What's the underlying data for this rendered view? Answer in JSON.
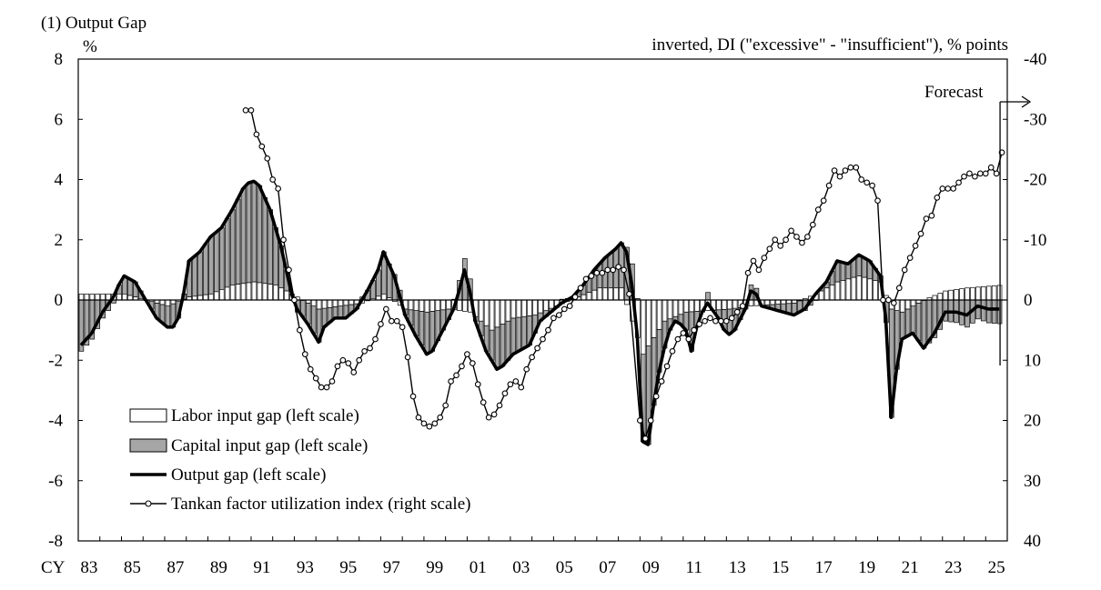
{
  "chart_data": {
    "type": "bar",
    "panel_title": "(1) Output Gap",
    "left_unit": "%",
    "right_unit": "inverted, DI (\"excessive\" - \"insufficient\"), % points",
    "forecast_label": "Forecast",
    "x_prefix": "CY",
    "x_ticks": [
      "83",
      "85",
      "87",
      "89",
      "91",
      "93",
      "95",
      "97",
      "99",
      "01",
      "03",
      "05",
      "07",
      "09",
      "11",
      "13",
      "15",
      "17",
      "19",
      "21",
      "23",
      "25"
    ],
    "x_range": [
      1983,
      2026
    ],
    "left_axis": {
      "range": [
        -8,
        8
      ],
      "ticks": [
        "8",
        "6",
        "4",
        "2",
        "0",
        "-2",
        "-4",
        "-6",
        "-8"
      ]
    },
    "right_axis": {
      "range": [
        40,
        -40
      ],
      "ticks": [
        "-40",
        "-30",
        "-20",
        "-10",
        "0",
        "10",
        "20",
        "30",
        "40"
      ]
    },
    "forecast_start": 2025.75,
    "legend": [
      {
        "key": "labor",
        "label": "Labor input gap (left scale)"
      },
      {
        "key": "capital",
        "label": "Capital input gap (left scale)"
      },
      {
        "key": "output",
        "label": "Output gap (left scale)"
      },
      {
        "key": "tankan",
        "label": "Tankan factor utilization index (right scale)"
      }
    ],
    "output_gap_anchors": [
      [
        1983.0,
        -1.5
      ],
      [
        1983.5,
        -1.1
      ],
      [
        1984.0,
        -0.4
      ],
      [
        1984.5,
        0.1
      ],
      [
        1984.75,
        0.5
      ],
      [
        1985.0,
        0.8
      ],
      [
        1985.5,
        0.6
      ],
      [
        1986.0,
        0.0
      ],
      [
        1986.5,
        -0.6
      ],
      [
        1987.0,
        -0.9
      ],
      [
        1987.25,
        -0.9
      ],
      [
        1987.5,
        -0.6
      ],
      [
        1987.75,
        0.2
      ],
      [
        1988.0,
        1.3
      ],
      [
        1988.5,
        1.6
      ],
      [
        1989.0,
        2.1
      ],
      [
        1989.5,
        2.4
      ],
      [
        1990.0,
        3.0
      ],
      [
        1990.5,
        3.7
      ],
      [
        1990.9,
        4.0
      ],
      [
        1991.25,
        3.8
      ],
      [
        1991.75,
        3.0
      ],
      [
        1992.25,
        1.8
      ],
      [
        1992.75,
        0.2
      ],
      [
        1993.0,
        -0.3
      ],
      [
        1993.5,
        -0.8
      ],
      [
        1994.0,
        -1.4
      ],
      [
        1994.25,
        -0.9
      ],
      [
        1994.75,
        -0.6
      ],
      [
        1995.25,
        -0.6
      ],
      [
        1995.75,
        -0.3
      ],
      [
        1996.25,
        0.3
      ],
      [
        1996.75,
        1.0
      ],
      [
        1997.0,
        1.6
      ],
      [
        1997.5,
        0.8
      ],
      [
        1998.0,
        -0.5
      ],
      [
        1998.5,
        -1.2
      ],
      [
        1999.0,
        -1.8
      ],
      [
        1999.25,
        -1.7
      ],
      [
        1999.75,
        -1.0
      ],
      [
        2000.25,
        -0.3
      ],
      [
        2000.5,
        0.3
      ],
      [
        2000.75,
        1.0
      ],
      [
        2001.0,
        0.3
      ],
      [
        2001.25,
        -0.7
      ],
      [
        2001.75,
        -1.7
      ],
      [
        2002.25,
        -2.3
      ],
      [
        2002.5,
        -2.2
      ],
      [
        2003.0,
        -1.8
      ],
      [
        2003.75,
        -1.5
      ],
      [
        2004.25,
        -0.7
      ],
      [
        2004.75,
        -0.4
      ],
      [
        2005.25,
        -0.1
      ],
      [
        2005.75,
        0.1
      ],
      [
        2006.25,
        0.5
      ],
      [
        2006.75,
        1.0
      ],
      [
        2007.25,
        1.4
      ],
      [
        2007.75,
        1.7
      ],
      [
        2008.0,
        1.9
      ],
      [
        2008.25,
        1.6
      ],
      [
        2008.5,
        0.5
      ],
      [
        2008.75,
        -1.2
      ],
      [
        2009.0,
        -4.7
      ],
      [
        2009.25,
        -4.8
      ],
      [
        2009.5,
        -3.5
      ],
      [
        2009.75,
        -2.4
      ],
      [
        2010.0,
        -1.6
      ],
      [
        2010.25,
        -1.0
      ],
      [
        2010.5,
        -0.7
      ],
      [
        2010.75,
        -0.8
      ],
      [
        2011.0,
        -1.0
      ],
      [
        2011.25,
        -1.7
      ],
      [
        2011.5,
        -0.9
      ],
      [
        2011.75,
        -0.4
      ],
      [
        2012.0,
        -0.1
      ],
      [
        2012.5,
        -0.6
      ],
      [
        2012.9,
        -1.2
      ],
      [
        2013.25,
        -1.0
      ],
      [
        2013.75,
        -0.3
      ],
      [
        2014.0,
        0.3
      ],
      [
        2014.25,
        0.2
      ],
      [
        2014.5,
        -0.2
      ],
      [
        2015.0,
        -0.3
      ],
      [
        2015.5,
        -0.4
      ],
      [
        2016.0,
        -0.5
      ],
      [
        2016.5,
        -0.3
      ],
      [
        2017.0,
        0.2
      ],
      [
        2017.5,
        0.6
      ],
      [
        2018.0,
        1.3
      ],
      [
        2018.5,
        1.2
      ],
      [
        2019.0,
        1.5
      ],
      [
        2019.5,
        1.3
      ],
      [
        2020.0,
        0.8
      ],
      [
        2020.25,
        -0.6
      ],
      [
        2020.5,
        -3.9
      ],
      [
        2020.75,
        -2.3
      ],
      [
        2021.0,
        -1.3
      ],
      [
        2021.5,
        -1.1
      ],
      [
        2022.0,
        -1.6
      ],
      [
        2022.5,
        -1.1
      ],
      [
        2023.0,
        -0.4
      ],
      [
        2023.5,
        -0.4
      ],
      [
        2024.0,
        -0.5
      ],
      [
        2024.5,
        -0.2
      ],
      [
        2025.0,
        -0.3
      ],
      [
        2025.5,
        -0.3
      ]
    ],
    "labor_anchors": [
      [
        1983.0,
        0.2
      ],
      [
        1985.0,
        0.2
      ],
      [
        1986.0,
        0.0
      ],
      [
        1987.0,
        -0.2
      ],
      [
        1988.0,
        0.1
      ],
      [
        1989.0,
        0.2
      ],
      [
        1990.0,
        0.5
      ],
      [
        1991.0,
        0.6
      ],
      [
        1992.0,
        0.5
      ],
      [
        1993.0,
        0.1
      ],
      [
        1994.0,
        -0.3
      ],
      [
        1996.0,
        -0.1
      ],
      [
        1997.0,
        0.2
      ],
      [
        1998.0,
        -0.3
      ],
      [
        1999.0,
        -0.4
      ],
      [
        2000.0,
        -0.3
      ],
      [
        2001.0,
        -0.4
      ],
      [
        2002.0,
        -1.0
      ],
      [
        2003.0,
        -0.6
      ],
      [
        2004.0,
        -0.5
      ],
      [
        2006.0,
        0.1
      ],
      [
        2007.0,
        0.4
      ],
      [
        2008.0,
        0.4
      ],
      [
        2009.0,
        -1.8
      ],
      [
        2010.0,
        -0.7
      ],
      [
        2011.0,
        -0.4
      ],
      [
        2013.0,
        -0.3
      ],
      [
        2014.0,
        -0.2
      ],
      [
        2016.0,
        -0.1
      ],
      [
        2017.0,
        0.2
      ],
      [
        2018.0,
        0.6
      ],
      [
        2019.0,
        0.8
      ],
      [
        2020.0,
        0.6
      ],
      [
        2020.5,
        -0.3
      ],
      [
        2021.0,
        -0.4
      ],
      [
        2022.0,
        0.0
      ],
      [
        2023.0,
        0.3
      ],
      [
        2024.0,
        0.4
      ],
      [
        2025.75,
        0.5
      ]
    ],
    "tankan_anchors": [
      [
        1990.75,
        -31.5
      ],
      [
        1991.0,
        -31.5
      ],
      [
        1991.25,
        -27.5
      ],
      [
        1991.5,
        -25.5
      ],
      [
        1991.75,
        -23.5
      ],
      [
        1992.0,
        -20.0
      ],
      [
        1992.25,
        -18.5
      ],
      [
        1992.5,
        -10.0
      ],
      [
        1992.75,
        -5.0
      ],
      [
        1993.0,
        0.0
      ],
      [
        1993.25,
        5.0
      ],
      [
        1993.5,
        9.0
      ],
      [
        1993.75,
        11.5
      ],
      [
        1994.0,
        13.0
      ],
      [
        1994.25,
        14.5
      ],
      [
        1994.5,
        14.5
      ],
      [
        1994.75,
        13.5
      ],
      [
        1995.0,
        11.0
      ],
      [
        1995.25,
        10.0
      ],
      [
        1995.5,
        10.5
      ],
      [
        1995.75,
        12.0
      ],
      [
        1996.0,
        10.0
      ],
      [
        1996.25,
        8.5
      ],
      [
        1996.5,
        8.0
      ],
      [
        1996.75,
        6.5
      ],
      [
        1997.0,
        4.0
      ],
      [
        1997.25,
        1.5
      ],
      [
        1997.5,
        3.5
      ],
      [
        1997.75,
        3.5
      ],
      [
        1998.0,
        4.5
      ],
      [
        1998.25,
        9.5
      ],
      [
        1998.5,
        16.0
      ],
      [
        1998.75,
        19.5
      ],
      [
        1999.0,
        20.5
      ],
      [
        1999.25,
        21.0
      ],
      [
        1999.5,
        20.5
      ],
      [
        1999.75,
        19.5
      ],
      [
        2000.0,
        17.5
      ],
      [
        2000.25,
        13.5
      ],
      [
        2000.5,
        12.5
      ],
      [
        2000.75,
        11.0
      ],
      [
        2001.0,
        9.0
      ],
      [
        2001.25,
        10.5
      ],
      [
        2001.5,
        14.0
      ],
      [
        2001.75,
        17.0
      ],
      [
        2002.0,
        19.5
      ],
      [
        2002.25,
        19.0
      ],
      [
        2002.5,
        17.5
      ],
      [
        2002.75,
        15.5
      ],
      [
        2003.0,
        14.0
      ],
      [
        2003.25,
        13.5
      ],
      [
        2003.5,
        14.5
      ],
      [
        2003.75,
        11.5
      ],
      [
        2004.0,
        9.5
      ],
      [
        2004.25,
        8.0
      ],
      [
        2004.5,
        6.5
      ],
      [
        2004.75,
        5.0
      ],
      [
        2005.0,
        3.0
      ],
      [
        2005.25,
        2.5
      ],
      [
        2005.5,
        1.5
      ],
      [
        2005.75,
        1.0
      ],
      [
        2006.0,
        -0.5
      ],
      [
        2006.25,
        -2.0
      ],
      [
        2006.5,
        -3.5
      ],
      [
        2006.75,
        -4.0
      ],
      [
        2007.0,
        -4.5
      ],
      [
        2007.25,
        -4.5
      ],
      [
        2007.5,
        -5.0
      ],
      [
        2007.75,
        -5.0
      ],
      [
        2008.0,
        -5.5
      ],
      [
        2008.25,
        -5.0
      ],
      [
        2008.5,
        -1.0
      ],
      [
        2009.0,
        20.0
      ],
      [
        2009.25,
        23.0
      ],
      [
        2009.5,
        20.0
      ],
      [
        2009.75,
        16.0
      ],
      [
        2010.0,
        13.5
      ],
      [
        2010.25,
        11.0
      ],
      [
        2010.5,
        8.5
      ],
      [
        2010.75,
        6.5
      ],
      [
        2011.0,
        5.5
      ],
      [
        2011.25,
        6.5
      ],
      [
        2011.5,
        5.0
      ],
      [
        2011.75,
        4.0
      ],
      [
        2012.0,
        3.5
      ],
      [
        2012.25,
        3.0
      ],
      [
        2012.5,
        3.5
      ],
      [
        2012.75,
        3.5
      ],
      [
        2013.0,
        3.5
      ],
      [
        2013.25,
        3.0
      ],
      [
        2013.5,
        2.0
      ],
      [
        2013.75,
        1.0
      ],
      [
        2014.0,
        -4.5
      ],
      [
        2014.25,
        -6.5
      ],
      [
        2014.5,
        -5.0
      ],
      [
        2014.75,
        -7.0
      ],
      [
        2015.0,
        -8.5
      ],
      [
        2015.25,
        -10.0
      ],
      [
        2015.5,
        -9.0
      ],
      [
        2015.75,
        -10.0
      ],
      [
        2016.0,
        -11.5
      ],
      [
        2016.25,
        -10.5
      ],
      [
        2016.5,
        -9.5
      ],
      [
        2016.75,
        -10.5
      ],
      [
        2017.0,
        -12.5
      ],
      [
        2017.25,
        -15.0
      ],
      [
        2017.5,
        -16.5
      ],
      [
        2017.75,
        -19.0
      ],
      [
        2018.0,
        -21.5
      ],
      [
        2018.25,
        -20.5
      ],
      [
        2018.5,
        -21.5
      ],
      [
        2018.75,
        -22.0
      ],
      [
        2019.0,
        -22.0
      ],
      [
        2019.25,
        -20.0
      ],
      [
        2019.5,
        -19.5
      ],
      [
        2019.75,
        -19.0
      ],
      [
        2020.0,
        -16.5
      ],
      [
        2020.25,
        0.0
      ],
      [
        2020.5,
        0.0
      ],
      [
        2020.75,
        0.5
      ],
      [
        2021.0,
        -2.0
      ],
      [
        2021.25,
        -5.0
      ],
      [
        2021.5,
        -7.0
      ],
      [
        2021.75,
        -9.0
      ],
      [
        2022.0,
        -11.0
      ],
      [
        2022.25,
        -13.5
      ],
      [
        2022.5,
        -14.0
      ],
      [
        2022.75,
        -17.0
      ],
      [
        2023.0,
        -18.5
      ],
      [
        2023.25,
        -18.5
      ],
      [
        2023.5,
        -18.5
      ],
      [
        2023.75,
        -19.5
      ],
      [
        2024.0,
        -20.5
      ],
      [
        2024.25,
        -21.0
      ],
      [
        2024.5,
        -20.5
      ],
      [
        2024.75,
        -21.0
      ],
      [
        2025.0,
        -21.0
      ],
      [
        2025.25,
        -22.0
      ],
      [
        2025.5,
        -21.0
      ],
      [
        2025.75,
        -24.5
      ]
    ]
  }
}
